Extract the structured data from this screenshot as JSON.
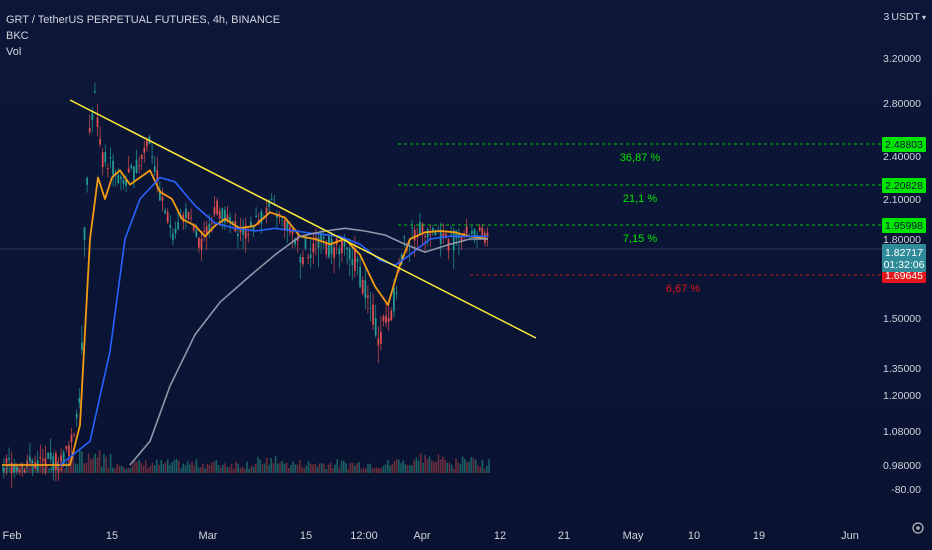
{
  "legend": {
    "symbol_line": "GRT / TetherUS PERPETUAL FUTURES, 4h, BINANCE",
    "indicator_1": "BKC",
    "indicator_2": "Vol"
  },
  "currency": {
    "label": "USDT",
    "prefix": "3"
  },
  "price_scale": {
    "ticks": [
      {
        "value": 3.2,
        "label": "3.20000"
      },
      {
        "value": 2.8,
        "label": "2.80000"
      },
      {
        "value": 2.4,
        "label": "2.40000"
      },
      {
        "value": 2.1,
        "label": "2.10000"
      },
      {
        "value": 1.8,
        "label": "1.80000"
      },
      {
        "value": 1.5,
        "label": "1.50000"
      },
      {
        "value": 1.35,
        "label": "1.35000"
      },
      {
        "value": 1.2,
        "label": "1.20000"
      },
      {
        "value": 1.08,
        "label": "1.08000"
      },
      {
        "value": 0.98,
        "label": "0.98000"
      }
    ],
    "volume_label": "-80.00"
  },
  "time_scale": [
    "Feb",
    "15",
    "Mar",
    "15",
    "12:00",
    "Apr",
    "12",
    "21",
    "May",
    "10",
    "19",
    "Jun"
  ],
  "levels": [
    {
      "price": "2.48803",
      "pct": "36,87 %",
      "kind": "target"
    },
    {
      "price": "2.20828",
      "pct": "21,1 %",
      "kind": "target"
    },
    {
      "price": "1.95998",
      "pct": "7,15 %",
      "kind": "target"
    },
    {
      "price": "1.69645",
      "pct": "6,67 %",
      "kind": "stop"
    }
  ],
  "current": {
    "price": "1.82717",
    "countdown": "01:32:06"
  },
  "colors": {
    "background": "#0a1434",
    "target": "#00e600",
    "stop": "#e3161b",
    "current": "#2e8b97",
    "trendline": "#ffeb3b",
    "ma_fast": "#f39c12",
    "ma_mid": "#2962ff",
    "ma_slow": "#8f96a8",
    "candle_up": "#26a69a",
    "candle_down": "#ef5350"
  },
  "icons": {
    "corner": "chart-settings-icon"
  }
}
